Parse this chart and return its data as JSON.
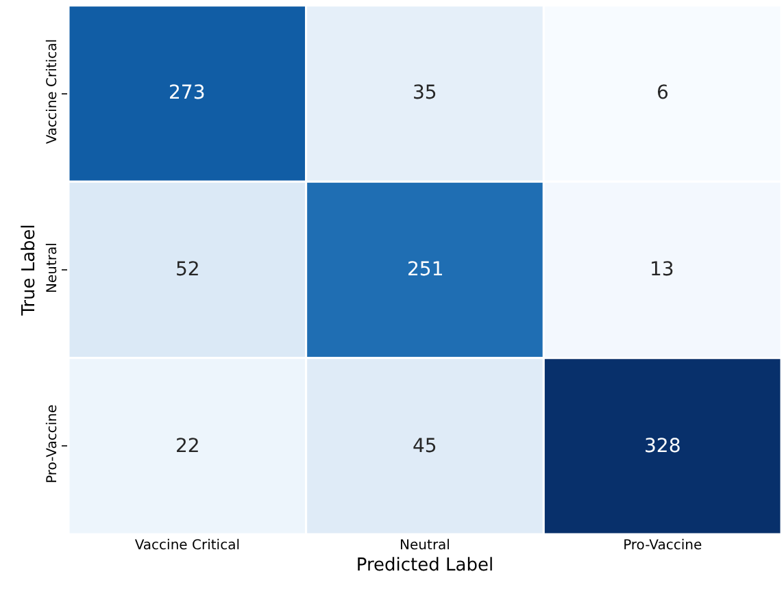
{
  "chart_data": {
    "type": "heatmap",
    "xlabel": "Predicted Label",
    "ylabel": "True Label",
    "categories": [
      "Vaccine Critical",
      "Neutral",
      "Pro-Vaccine"
    ],
    "y_categories": [
      "Vaccine Critical",
      "Neutral",
      "Pro-Vaccine"
    ],
    "cells": [
      [
        273,
        35,
        6
      ],
      [
        52,
        251,
        13
      ],
      [
        22,
        45,
        328
      ]
    ],
    "data_labels": true
  }
}
